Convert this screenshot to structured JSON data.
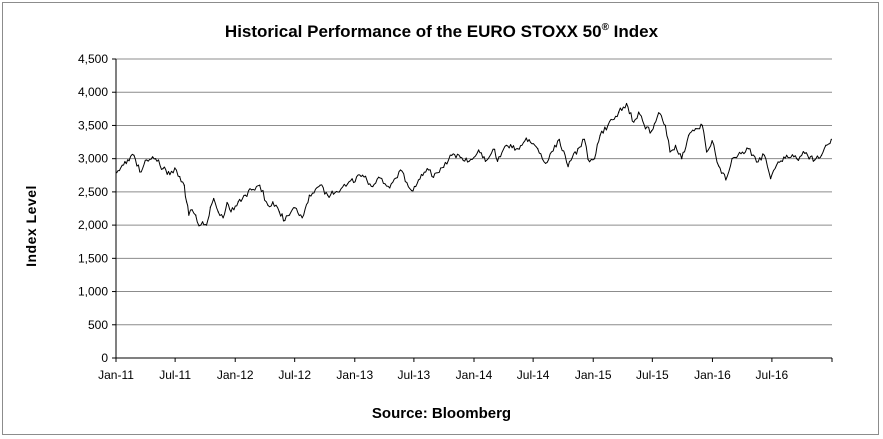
{
  "chart_data": {
    "type": "line",
    "title": "Historical Performance of the EURO STOXX 50",
    "title_mark": "®",
    "title_suffix": " Index",
    "xlabel": "",
    "ylabel": "Index Level",
    "source": "Source: Bloomberg",
    "ylim": [
      0,
      4500
    ],
    "yticks": [
      0,
      500,
      1000,
      1500,
      2000,
      2500,
      3000,
      3500,
      4000,
      4500
    ],
    "ytick_labels": [
      "0",
      "500",
      "1,000",
      "1,500",
      "2,000",
      "2,500",
      "3,000",
      "3,500",
      "4,000",
      "4,500"
    ],
    "xticks": [
      "Jan-11",
      "Jul-11",
      "Jan-12",
      "Jul-12",
      "Jan-13",
      "Jul-13",
      "Jan-14",
      "Jul-14",
      "Jan-15",
      "Jul-15",
      "Jan-16",
      "Jul-16"
    ],
    "grid": "horizontal",
    "line_color": "#000000",
    "series": [
      {
        "values": [
          [
            "2011-01-03",
            2790
          ],
          [
            "2011-01-20",
            2900
          ],
          [
            "2011-02-10",
            2970
          ],
          [
            "2011-02-25",
            3050
          ],
          [
            "2011-03-15",
            2800
          ],
          [
            "2011-04-05",
            2980
          ],
          [
            "2011-05-02",
            3000
          ],
          [
            "2011-05-25",
            2850
          ],
          [
            "2011-06-15",
            2760
          ],
          [
            "2011-06-30",
            2860
          ],
          [
            "2011-07-15",
            2730
          ],
          [
            "2011-07-29",
            2600
          ],
          [
            "2011-08-05",
            2350
          ],
          [
            "2011-08-12",
            2150
          ],
          [
            "2011-08-22",
            2230
          ],
          [
            "2011-09-02",
            2150
          ],
          [
            "2011-09-12",
            1990
          ],
          [
            "2011-09-23",
            2050
          ],
          [
            "2011-10-05",
            2000
          ],
          [
            "2011-10-17",
            2270
          ],
          [
            "2011-10-27",
            2400
          ],
          [
            "2011-11-10",
            2200
          ],
          [
            "2011-11-25",
            2110
          ],
          [
            "2011-12-07",
            2340
          ],
          [
            "2011-12-19",
            2200
          ],
          [
            "2012-01-10",
            2350
          ],
          [
            "2012-02-01",
            2450
          ],
          [
            "2012-02-20",
            2530
          ],
          [
            "2012-03-16",
            2600
          ],
          [
            "2012-04-10",
            2300
          ],
          [
            "2012-04-25",
            2350
          ],
          [
            "2012-05-15",
            2200
          ],
          [
            "2012-06-01",
            2070
          ],
          [
            "2012-06-15",
            2150
          ],
          [
            "2012-07-02",
            2260
          ],
          [
            "2012-07-24",
            2110
          ],
          [
            "2012-08-15",
            2450
          ],
          [
            "2012-09-17",
            2600
          ],
          [
            "2012-10-10",
            2450
          ],
          [
            "2012-11-15",
            2500
          ],
          [
            "2012-12-10",
            2620
          ],
          [
            "2013-01-25",
            2750
          ],
          [
            "2013-02-25",
            2580
          ],
          [
            "2013-03-15",
            2720
          ],
          [
            "2013-04-18",
            2560
          ],
          [
            "2013-05-21",
            2830
          ],
          [
            "2013-06-24",
            2520
          ],
          [
            "2013-07-15",
            2680
          ],
          [
            "2013-08-15",
            2830
          ],
          [
            "2013-08-30",
            2720
          ],
          [
            "2013-09-30",
            2870
          ],
          [
            "2013-10-25",
            3050
          ],
          [
            "2013-11-20",
            3020
          ],
          [
            "2013-12-17",
            2960
          ],
          [
            "2014-01-15",
            3130
          ],
          [
            "2014-02-05",
            2960
          ],
          [
            "2014-03-05",
            3140
          ],
          [
            "2014-03-14",
            2960
          ],
          [
            "2014-04-10",
            3200
          ],
          [
            "2014-05-15",
            3150
          ],
          [
            "2014-06-10",
            3310
          ],
          [
            "2014-07-15",
            3150
          ],
          [
            "2014-08-08",
            2930
          ],
          [
            "2014-09-19",
            3290
          ],
          [
            "2014-10-16",
            2880
          ],
          [
            "2014-11-15",
            3150
          ],
          [
            "2014-12-05",
            3290
          ],
          [
            "2014-12-16",
            2990
          ],
          [
            "2015-01-05",
            3000
          ],
          [
            "2015-01-22",
            3350
          ],
          [
            "2015-02-15",
            3500
          ],
          [
            "2015-03-20",
            3700
          ],
          [
            "2015-04-13",
            3830
          ],
          [
            "2015-05-05",
            3550
          ],
          [
            "2015-05-20",
            3700
          ],
          [
            "2015-06-10",
            3450
          ],
          [
            "2015-06-29",
            3420
          ],
          [
            "2015-07-20",
            3690
          ],
          [
            "2015-08-10",
            3500
          ],
          [
            "2015-08-24",
            3100
          ],
          [
            "2015-09-10",
            3200
          ],
          [
            "2015-09-29",
            3000
          ],
          [
            "2015-10-20",
            3350
          ],
          [
            "2015-11-10",
            3450
          ],
          [
            "2015-12-01",
            3500
          ],
          [
            "2015-12-14",
            3100
          ],
          [
            "2015-12-31",
            3270
          ],
          [
            "2016-01-20",
            2890
          ],
          [
            "2016-02-11",
            2680
          ],
          [
            "2016-03-01",
            3000
          ],
          [
            "2016-04-20",
            3150
          ],
          [
            "2016-05-15",
            2950
          ],
          [
            "2016-06-08",
            3050
          ],
          [
            "2016-06-27",
            2700
          ],
          [
            "2016-07-20",
            2950
          ],
          [
            "2016-08-15",
            3050
          ],
          [
            "2016-09-15",
            3000
          ],
          [
            "2016-10-10",
            3080
          ],
          [
            "2016-11-09",
            2980
          ],
          [
            "2016-11-30",
            3050
          ],
          [
            "2016-12-13",
            3200
          ],
          [
            "2016-12-30",
            3290
          ]
        ]
      }
    ]
  }
}
